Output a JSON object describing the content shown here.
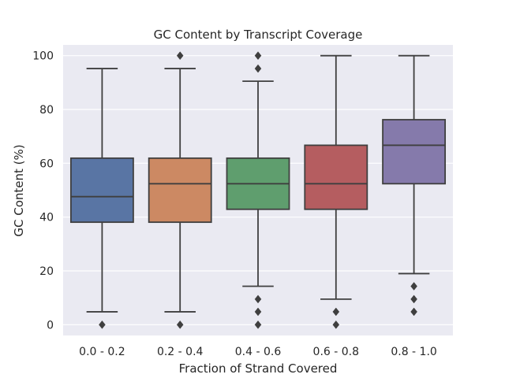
{
  "chart_data": {
    "type": "box",
    "title": "GC Content by Transcript Coverage",
    "xlabel": "Fraction of Strand Covered",
    "ylabel": "GC Content (%)",
    "ylim": [
      -4,
      104
    ],
    "yticks": [
      0,
      20,
      40,
      60,
      80,
      100
    ],
    "grid": true,
    "background": "#EAEAF2",
    "categories": [
      "0.0 - 0.2",
      "0.2 - 0.4",
      "0.4 - 0.6",
      "0.6 - 0.8",
      "0.8 - 1.0"
    ],
    "series": [
      {
        "category": "0.0 - 0.2",
        "color": "#5975A4",
        "whisker_low": 4.8,
        "q1": 38.1,
        "median": 47.6,
        "q3": 61.9,
        "whisker_high": 95.2,
        "outliers": [
          0
        ]
      },
      {
        "category": "0.2 - 0.4",
        "color": "#CC8963",
        "whisker_low": 4.8,
        "q1": 38.1,
        "median": 52.4,
        "q3": 61.9,
        "whisker_high": 95.2,
        "outliers": [
          0,
          100
        ]
      },
      {
        "category": "0.4 - 0.6",
        "color": "#5F9E6E",
        "whisker_low": 14.3,
        "q1": 42.9,
        "median": 52.4,
        "q3": 61.9,
        "whisker_high": 90.5,
        "outliers": [
          0,
          4.8,
          9.5,
          95.2,
          100
        ]
      },
      {
        "category": "0.6 - 0.8",
        "color": "#B55D60",
        "whisker_low": 9.5,
        "q1": 42.9,
        "median": 52.4,
        "q3": 66.7,
        "whisker_high": 100,
        "outliers": [
          0,
          4.8
        ]
      },
      {
        "category": "0.8 - 1.0",
        "color": "#857AAB",
        "whisker_low": 19.0,
        "q1": 52.4,
        "median": 66.7,
        "q3": 76.2,
        "whisker_high": 100,
        "outliers": [
          4.8,
          9.5,
          14.3
        ]
      }
    ]
  }
}
